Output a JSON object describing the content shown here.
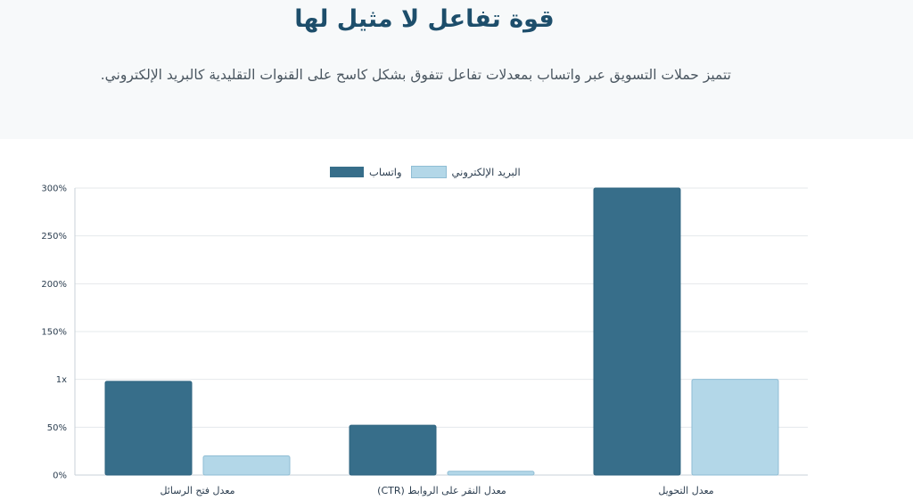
{
  "header": {
    "title": "قوة تفاعل لا مثيل لها",
    "subtitle": "تتميز حملات التسويق عبر واتساب بمعدلات تفاعل تتفوق بشكل كاسح على القنوات التقليدية كالبريد الإلكتروني."
  },
  "chart_data": {
    "type": "bar",
    "categories": [
      "معدل فتح الرسائل",
      "معدل النقر على الروابط (CTR)",
      "معدل التحويل"
    ],
    "series": [
      {
        "name": "واتساب",
        "values": [
          98,
          52,
          300
        ],
        "color": "#376e8a"
      },
      {
        "name": "البريد الإلكتروني",
        "values": [
          20,
          4,
          100
        ],
        "color": "#b3d7e8"
      }
    ],
    "yticks": [
      "0%",
      "50%",
      "1x",
      "150%",
      "200%",
      "250%",
      "300%"
    ],
    "ylim": [
      0,
      300
    ],
    "grid": true,
    "legend_position": "top-center"
  }
}
